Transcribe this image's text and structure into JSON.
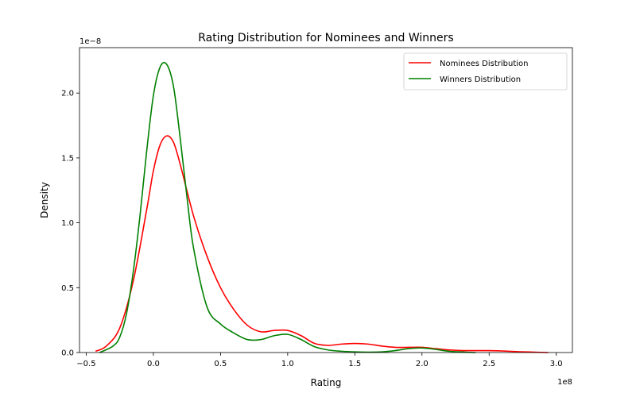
{
  "chart_data": {
    "type": "line",
    "title": "Rating Distribution for Nominees and Winners",
    "xlabel": "Rating",
    "ylabel": "Density",
    "x_offset_label": "1e8",
    "y_offset_label": "1e−8",
    "xlim": [
      -0.55,
      3.12
    ],
    "ylim": [
      0,
      2.35
    ],
    "x_ticks": [
      -0.5,
      0.0,
      0.5,
      1.0,
      1.5,
      2.0,
      2.5,
      3.0
    ],
    "x_tick_labels": [
      "−0.5",
      "0.0",
      "0.5",
      "1.0",
      "1.5",
      "2.0",
      "2.5",
      "3.0"
    ],
    "y_ticks": [
      0.0,
      0.5,
      1.0,
      1.5,
      2.0
    ],
    "y_tick_labels": [
      "0.0",
      "0.5",
      "1.0",
      "1.5",
      "2.0"
    ],
    "grid": false,
    "legend_position": "top-right",
    "series": [
      {
        "name": "Nominees Distribution",
        "color": "#ff0000",
        "x": [
          -0.43,
          -0.35,
          -0.25,
          -0.15,
          -0.05,
          0.0,
          0.05,
          0.1,
          0.15,
          0.2,
          0.3,
          0.4,
          0.5,
          0.6,
          0.7,
          0.8,
          0.9,
          1.0,
          1.1,
          1.2,
          1.3,
          1.4,
          1.5,
          1.6,
          1.7,
          1.8,
          1.9,
          2.0,
          2.1,
          2.2,
          2.3,
          2.4,
          2.5,
          2.6,
          2.7,
          2.8,
          2.94
        ],
        "y": [
          0.01,
          0.05,
          0.19,
          0.55,
          1.1,
          1.4,
          1.6,
          1.67,
          1.62,
          1.45,
          1.05,
          0.74,
          0.5,
          0.33,
          0.21,
          0.16,
          0.17,
          0.17,
          0.13,
          0.07,
          0.055,
          0.065,
          0.07,
          0.065,
          0.05,
          0.04,
          0.04,
          0.04,
          0.03,
          0.02,
          0.015,
          0.015,
          0.015,
          0.012,
          0.007,
          0.004,
          0.0
        ]
      },
      {
        "name": "Winners Distribution",
        "color": "#008000",
        "x": [
          -0.4,
          -0.3,
          -0.25,
          -0.2,
          -0.15,
          -0.1,
          -0.05,
          0.0,
          0.05,
          0.1,
          0.15,
          0.2,
          0.25,
          0.3,
          0.4,
          0.5,
          0.6,
          0.7,
          0.8,
          0.9,
          1.0,
          1.1,
          1.2,
          1.3,
          1.4,
          1.5,
          1.6,
          1.7,
          1.8,
          1.9,
          2.0,
          2.1,
          2.2,
          2.3,
          2.4
        ],
        "y": [
          0.0,
          0.05,
          0.12,
          0.3,
          0.62,
          1.05,
          1.55,
          1.98,
          2.2,
          2.22,
          2.05,
          1.65,
          1.2,
          0.8,
          0.35,
          0.22,
          0.15,
          0.1,
          0.1,
          0.13,
          0.14,
          0.1,
          0.045,
          0.02,
          0.01,
          0.005,
          0.003,
          0.005,
          0.015,
          0.03,
          0.035,
          0.025,
          0.01,
          0.004,
          0.0
        ]
      }
    ]
  }
}
